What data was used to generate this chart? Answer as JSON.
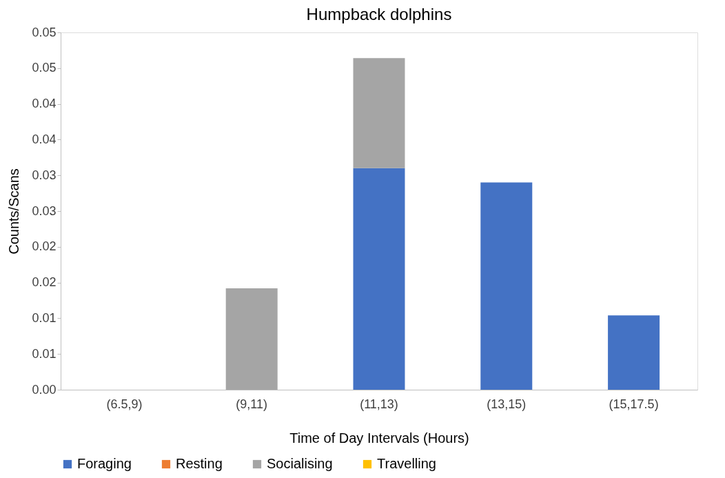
{
  "chart_data": {
    "type": "bar",
    "title": "Humpback dolphins",
    "xlabel": "Time of Day Intervals (Hours)",
    "ylabel": "Counts/Scans",
    "categories": [
      "(6.5,9)",
      "(9,11)",
      "(11,13)",
      "(13,15)",
      "(15,17.5)"
    ],
    "stacked": true,
    "series": [
      {
        "name": "Foraging",
        "color": "#4472c4",
        "values": [
          0,
          0,
          0.031,
          0.029,
          0.0104
        ]
      },
      {
        "name": "Resting",
        "color": "#ed7d31",
        "values": [
          0,
          0,
          0,
          0,
          0
        ]
      },
      {
        "name": "Socialising",
        "color": "#a5a5a5",
        "values": [
          0,
          0.0142,
          0.0154,
          0,
          0
        ]
      },
      {
        "name": "Travelling",
        "color": "#ffc000",
        "values": [
          0,
          0,
          0,
          0,
          0
        ]
      }
    ],
    "ylim": [
      0,
      0.05
    ],
    "yticks": [
      {
        "value": 0,
        "label": "0.00"
      },
      {
        "value": 0.005,
        "label": "0.01"
      },
      {
        "value": 0.01,
        "label": "0.01"
      },
      {
        "value": 0.015,
        "label": "0.02"
      },
      {
        "value": 0.02,
        "label": "0.02"
      },
      {
        "value": 0.025,
        "label": "0.03"
      },
      {
        "value": 0.03,
        "label": "0.03"
      },
      {
        "value": 0.035,
        "label": "0.04"
      },
      {
        "value": 0.04,
        "label": "0.04"
      },
      {
        "value": 0.045,
        "label": "0.05"
      },
      {
        "value": 0.05,
        "label": "0.05"
      }
    ],
    "grid": false,
    "legend": "bottom"
  }
}
